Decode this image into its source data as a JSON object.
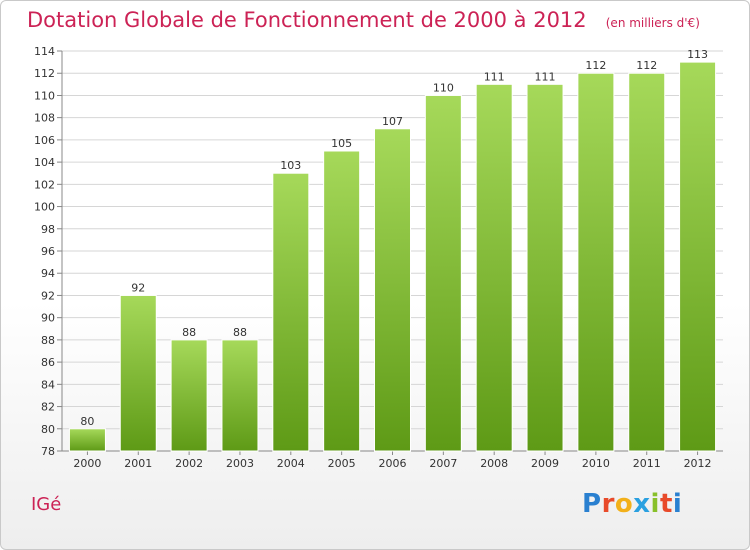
{
  "title": "Dotation Globale de Fonctionnement de 2000 à 2012",
  "unit": "(en milliers d'€)",
  "commune": "IGé",
  "logo": {
    "letters": [
      "P",
      "r",
      "o",
      "x",
      "i",
      "t",
      "i"
    ],
    "colors": [
      "#2a80d0",
      "#e84a2a",
      "#f2b01a",
      "#2aa0e0",
      "#88c02a",
      "#e84a2a",
      "#2a80d0"
    ]
  },
  "colors": {
    "title": "#cc2255",
    "bar_light": "#a6d95a",
    "bar_dark": "#5e9a16",
    "grid": "#d6d6d6",
    "axis_text": "#333333"
  },
  "chart_data": {
    "type": "bar",
    "categories": [
      "2000",
      "2001",
      "2002",
      "2003",
      "2004",
      "2005",
      "2006",
      "2007",
      "2008",
      "2009",
      "2010",
      "2011",
      "2012"
    ],
    "values": [
      80,
      92,
      88,
      88,
      103,
      105,
      107,
      110,
      111,
      111,
      112,
      112,
      113
    ],
    "title": "Dotation Globale de Fonctionnement de 2000 à 2012",
    "xlabel": "",
    "ylabel": "",
    "ylim": [
      78,
      114
    ],
    "yticks": [
      78,
      80,
      82,
      84,
      86,
      88,
      90,
      92,
      94,
      96,
      98,
      100,
      102,
      104,
      106,
      108,
      110,
      112,
      114
    ],
    "grid": true,
    "legend": "none"
  }
}
